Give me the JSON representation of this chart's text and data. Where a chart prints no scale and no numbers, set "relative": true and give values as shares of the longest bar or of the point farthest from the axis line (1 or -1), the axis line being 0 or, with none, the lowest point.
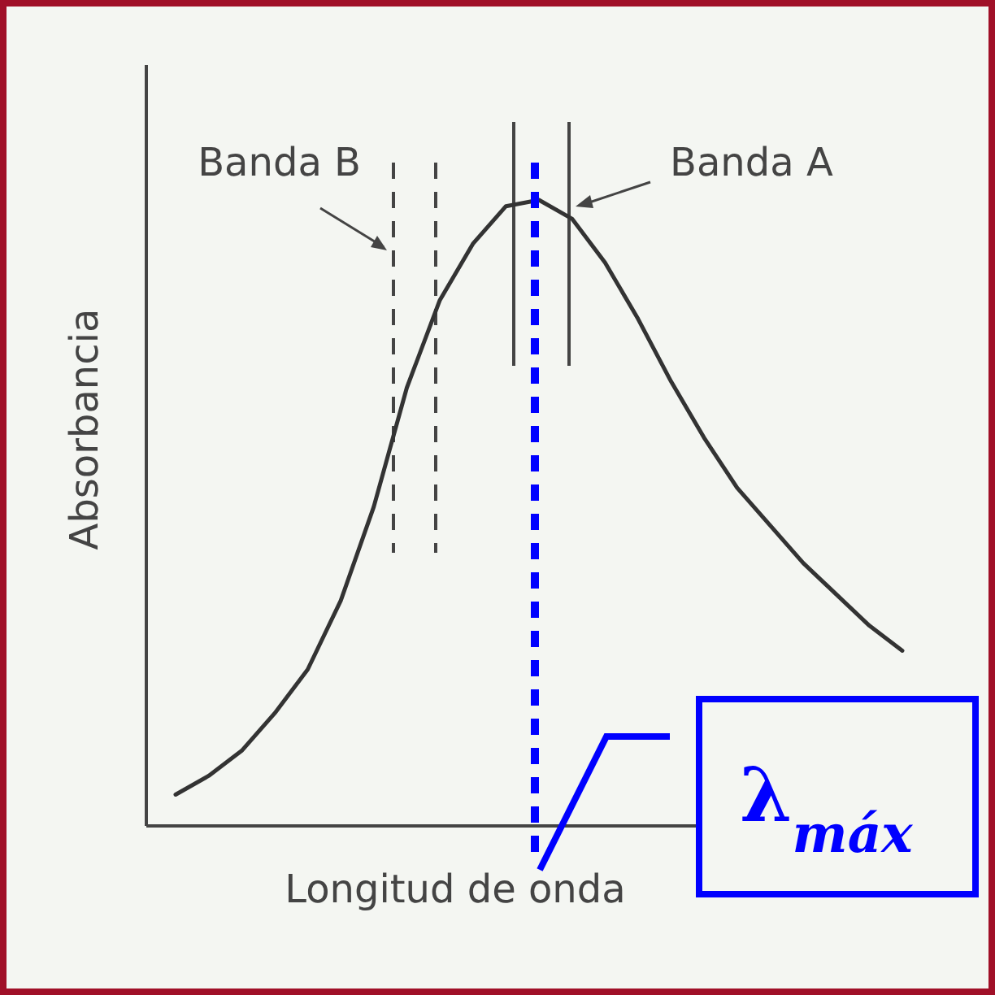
{
  "chart_data": {
    "type": "line",
    "relative": true,
    "xlabel": "Longitud de onda",
    "ylabel": "Absorbancia",
    "marker": "none",
    "line_style": "solid",
    "categories": [
      null,
      null,
      null,
      null,
      null,
      null,
      null,
      null,
      null,
      null,
      null,
      null,
      null,
      null,
      null,
      null,
      null,
      null,
      null,
      null,
      null,
      null,
      null
    ],
    "series": [
      {
        "color": "#333333",
        "values": [
          0.05,
          0.08,
          0.12,
          0.18,
          0.25,
          0.36,
          0.51,
          0.7,
          0.84,
          0.93,
          0.99,
          1,
          0.97,
          0.9,
          0.81,
          0.71,
          0.62,
          0.54,
          0.48,
          0.42,
          0.37,
          0.32,
          0.28
        ]
      }
    ],
    "annotations": [
      "Banda B",
      "Banda A",
      "λ$_{máx}$"
    ]
  }
}
